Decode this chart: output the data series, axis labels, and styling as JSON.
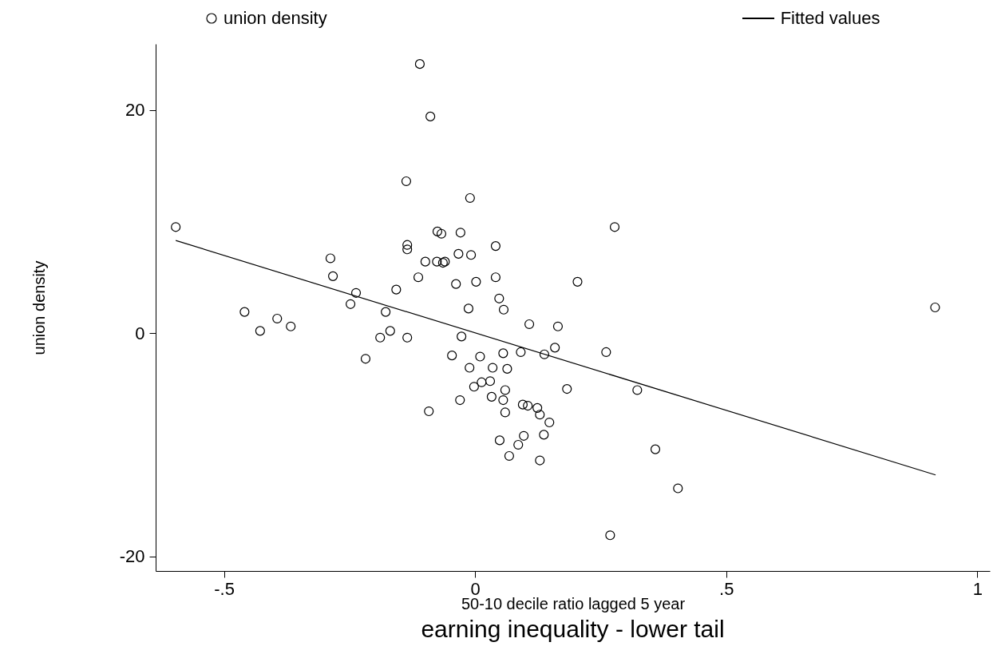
{
  "chart_data": {
    "type": "scatter",
    "title": "earning inequality - lower tail",
    "xlabel": "50-10 decile ratio lagged 5 year",
    "ylabel": "union density",
    "xlim": [
      -0.636,
      1.025
    ],
    "ylim": [
      -21.3,
      25.9
    ],
    "xticks": [
      {
        "value": -0.5,
        "label": "-.5"
      },
      0,
      {
        "value": 0.5,
        "label": ".5"
      },
      1
    ],
    "yticks": [
      -20,
      0,
      20
    ],
    "legend": "top",
    "series": [
      {
        "name": "union density",
        "type": "scatter",
        "marker": "circle",
        "color": "#000000",
        "x": [
          -0.596,
          -0.11,
          -0.089,
          -0.137,
          -0.01,
          0.278,
          -0.075,
          -0.029,
          -0.067,
          -0.135,
          -0.135,
          0.041,
          -0.288,
          -0.099,
          -0.076,
          -0.06,
          -0.064,
          -0.033,
          -0.008,
          -0.283,
          -0.113,
          0.041,
          -0.157,
          -0.038,
          0.002,
          -0.237,
          0.204,
          0.048,
          0.057,
          -0.013,
          -0.248,
          -0.459,
          -0.178,
          -0.394,
          -0.367,
          -0.428,
          -0.169,
          0.916,
          0.108,
          0.165,
          -0.189,
          -0.135,
          -0.027,
          -0.218,
          -0.046,
          0.01,
          0.056,
          0.091,
          0.138,
          0.159,
          0.261,
          -0.011,
          0.035,
          0.064,
          -0.002,
          0.013,
          0.03,
          0.06,
          0.183,
          0.323,
          -0.03,
          0.033,
          0.056,
          0.095,
          0.105,
          0.124,
          0.129,
          0.06,
          0.148,
          -0.092,
          0.049,
          0.097,
          0.137,
          0.086,
          0.068,
          0.129,
          0.359,
          0.404,
          0.269
        ],
        "values": [
          9.5,
          24.1,
          19.4,
          13.6,
          12.1,
          9.5,
          9.1,
          9.0,
          8.9,
          7.9,
          7.5,
          7.8,
          6.7,
          6.4,
          6.4,
          6.4,
          6.3,
          7.1,
          7.0,
          5.1,
          5.0,
          5.0,
          3.9,
          4.4,
          4.6,
          3.6,
          4.6,
          3.1,
          2.1,
          2.2,
          2.6,
          1.9,
          1.9,
          1.3,
          0.6,
          0.2,
          0.2,
          2.3,
          0.8,
          0.6,
          -0.4,
          -0.4,
          -0.3,
          -2.3,
          -2.0,
          -2.1,
          -1.8,
          -1.7,
          -1.9,
          -1.3,
          -1.7,
          -3.1,
          -3.1,
          -3.2,
          -4.8,
          -4.4,
          -4.3,
          -5.1,
          -5.0,
          -5.1,
          -6.0,
          -5.7,
          -6.0,
          -6.4,
          -6.5,
          -6.7,
          -7.3,
          -7.1,
          -8.0,
          -7.0,
          -9.6,
          -9.2,
          -9.1,
          -10.0,
          -11.0,
          -11.4,
          -10.4,
          -13.9,
          -18.1
        ]
      },
      {
        "name": "Fitted values",
        "type": "line",
        "marker": "none",
        "line_style": "solid",
        "color": "#000000",
        "x": [
          -0.596,
          0.917
        ],
        "values": [
          8.3,
          -12.7
        ]
      }
    ]
  }
}
